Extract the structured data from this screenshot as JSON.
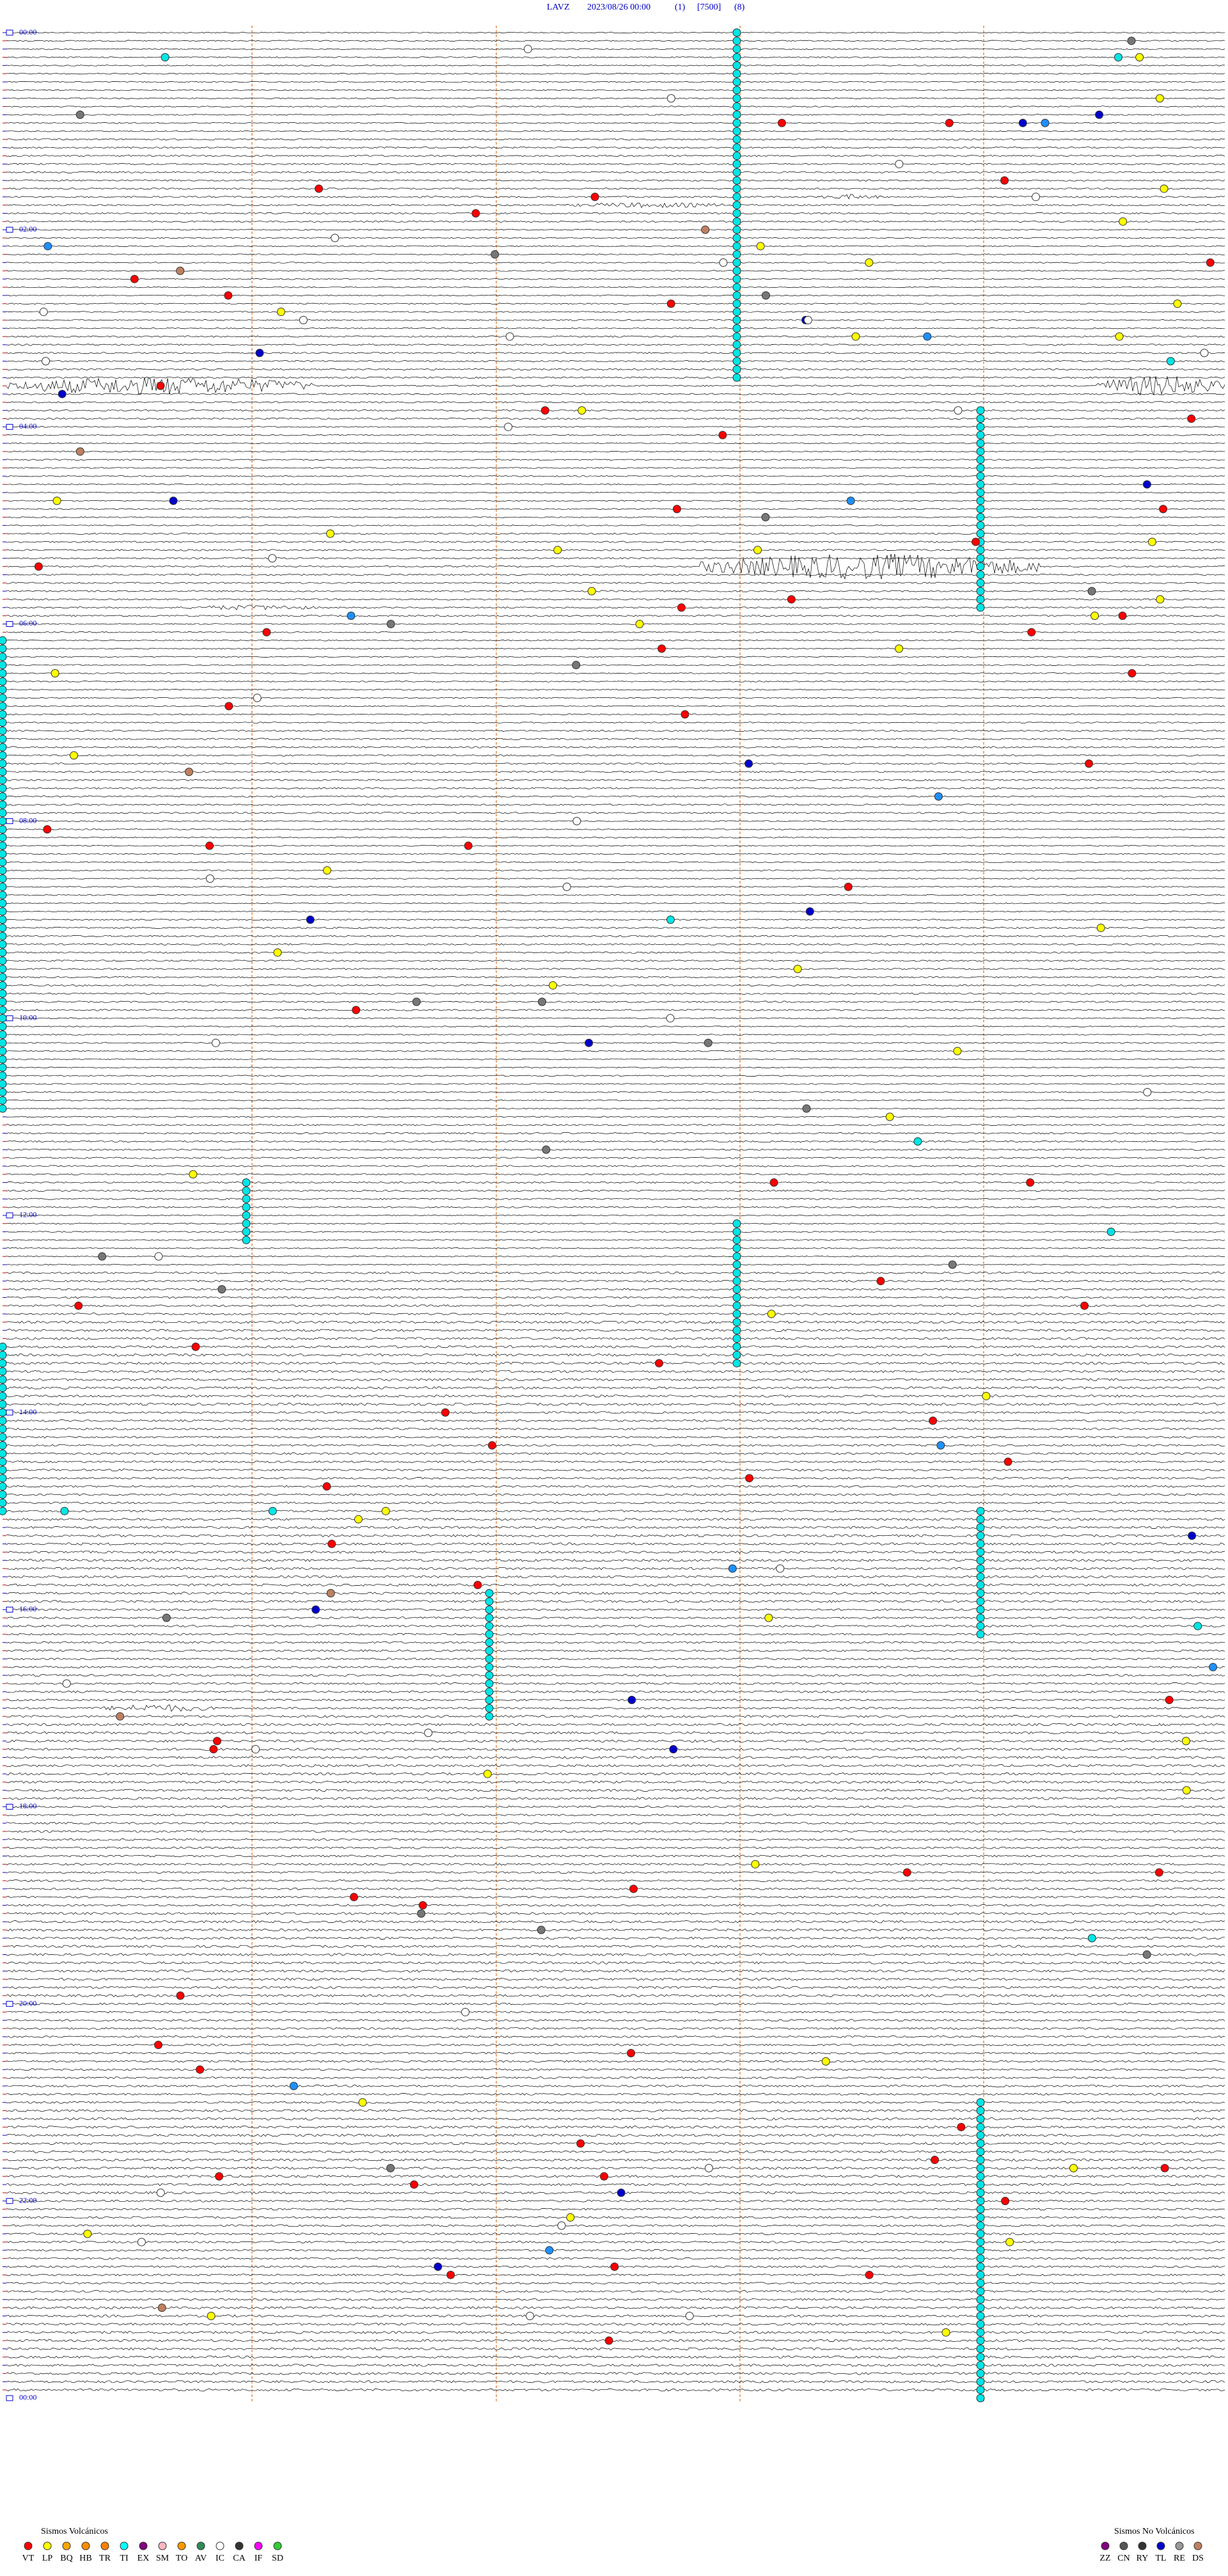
{
  "header": {
    "station": "LAVZ",
    "datetime": "2023/08/26 00:00",
    "channel": "(1)",
    "scale": "[7500]",
    "filter": "(8)"
  },
  "time_labels": [
    "00:00",
    "02:00",
    "04:00",
    "06:00",
    "08:00",
    "10:00",
    "12:00",
    "14:00",
    "16:00",
    "18:00",
    "20:00",
    "22:00",
    "00:00"
  ],
  "legend_volcanic": {
    "title": "Sismos Volcánicos",
    "items": [
      {
        "code": "VT",
        "color": "#ff0000"
      },
      {
        "code": "LP",
        "color": "#ffff00"
      },
      {
        "code": "BQ",
        "color": "#ffa500"
      },
      {
        "code": "HB",
        "color": "#ff8c00"
      },
      {
        "code": "TR",
        "color": "#ff7f00"
      },
      {
        "code": "TI",
        "color": "#00ffff"
      },
      {
        "code": "EX",
        "color": "#800080"
      },
      {
        "code": "SM",
        "color": "#ffb6c1"
      },
      {
        "code": "TO",
        "color": "#ff9900"
      },
      {
        "code": "AV",
        "color": "#2e8b57"
      },
      {
        "code": "IC",
        "color": "#ffffff"
      },
      {
        "code": "CA",
        "color": "#333333"
      },
      {
        "code": "IF",
        "color": "#ff00ff"
      },
      {
        "code": "SD",
        "color": "#32cd32"
      }
    ]
  },
  "legend_nonvolcanic": {
    "title": "Sismos No Volcánicos",
    "items": [
      {
        "code": "ZZ",
        "color": "#800080"
      },
      {
        "code": "CN",
        "color": "#555555"
      },
      {
        "code": "RY",
        "color": "#333333"
      },
      {
        "code": "TL",
        "color": "#0000cc"
      },
      {
        "code": "RE",
        "color": "#999999"
      },
      {
        "code": "DS",
        "color": "#c08060"
      }
    ]
  }
}
